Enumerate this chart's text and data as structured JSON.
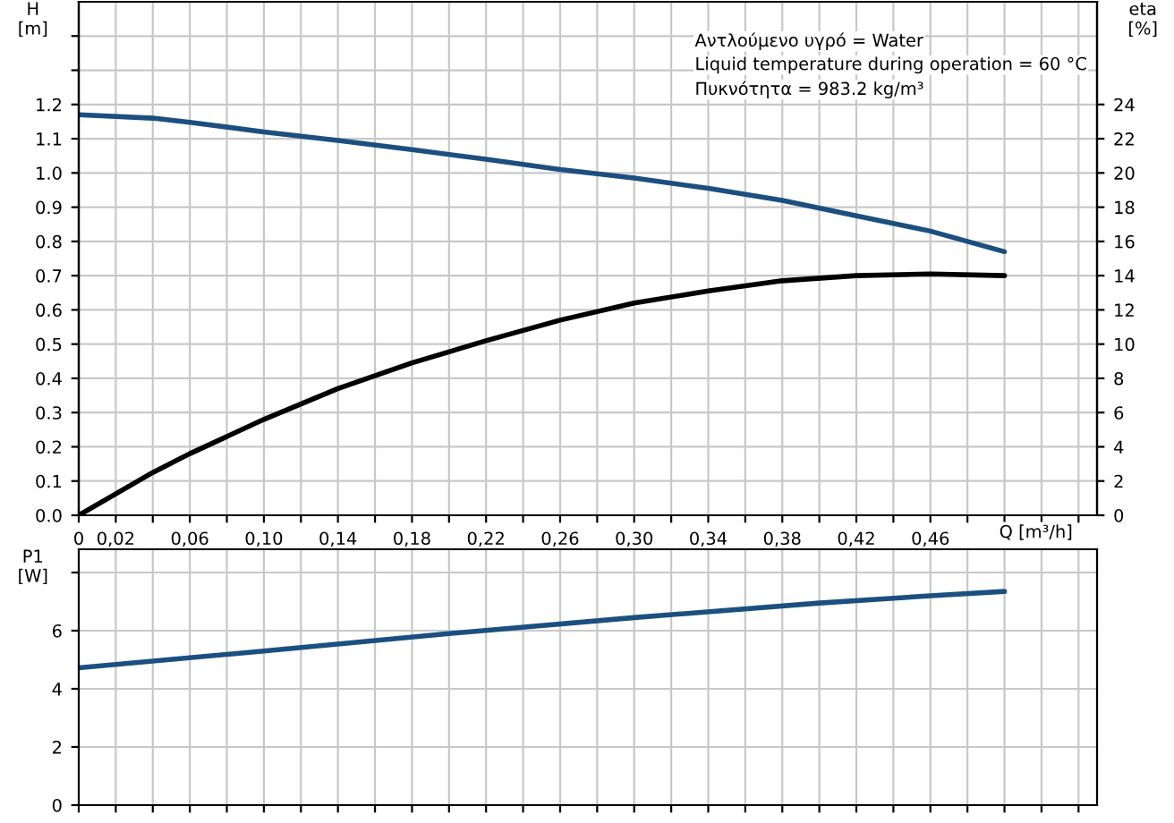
{
  "chart_data": [
    {
      "type": "line",
      "xlabel": "Q [m³/h]",
      "ylabel": "H\n[m]",
      "y2label": "eta\n[%]",
      "annotations": [
        "Αντλούμενο υγρό = Water",
        "Liquid temperature during operation = 60 °C",
        "Πυκνότητα = 983.2 kg/m³"
      ],
      "x": [
        0,
        0.04,
        0.06,
        0.1,
        0.14,
        0.18,
        0.22,
        0.26,
        0.3,
        0.34,
        0.38,
        0.42,
        0.46,
        0.5
      ],
      "series": [
        {
          "color": "#1b4f80",
          "values": [
            1.17,
            1.16,
            1.148,
            1.12,
            1.095,
            1.068,
            1.04,
            1.01,
            0.985,
            0.955,
            0.92,
            0.875,
            0.83,
            0.77
          ]
        },
        {
          "color": "#000000",
          "axis": "y2",
          "values": [
            0,
            2.5,
            3.6,
            5.6,
            7.4,
            8.9,
            10.2,
            11.4,
            12.4,
            13.1,
            13.7,
            14.0,
            14.1,
            14.0
          ]
        }
      ],
      "xlim": [
        0,
        0.55
      ],
      "xticks": [
        0,
        {
          "value": 0.02,
          "label": "0,02"
        },
        {
          "value": 0.04,
          "label": null
        },
        {
          "value": 0.06,
          "label": "0,06"
        },
        {
          "value": 0.08,
          "label": null
        },
        {
          "value": 0.1,
          "label": "0,10"
        },
        {
          "value": 0.12,
          "label": null
        },
        {
          "value": 0.14,
          "label": "0,14"
        },
        {
          "value": 0.16,
          "label": null
        },
        {
          "value": 0.18,
          "label": "0,18"
        },
        {
          "value": 0.2,
          "label": null
        },
        {
          "value": 0.22,
          "label": "0,22"
        },
        {
          "value": 0.24,
          "label": null
        },
        {
          "value": 0.26,
          "label": "0,26"
        },
        {
          "value": 0.28,
          "label": null
        },
        {
          "value": 0.3,
          "label": "0,30"
        },
        {
          "value": 0.32,
          "label": null
        },
        {
          "value": 0.34,
          "label": "0,34"
        },
        {
          "value": 0.36,
          "label": null
        },
        {
          "value": 0.38,
          "label": "0,38"
        },
        {
          "value": 0.4,
          "label": null
        },
        {
          "value": 0.42,
          "label": "0,42"
        },
        {
          "value": 0.44,
          "label": null
        },
        {
          "value": 0.46,
          "label": "0,46"
        },
        {
          "value": 0.48,
          "label": null
        },
        {
          "value": 0.5,
          "label": null
        },
        {
          "value": 0.52,
          "label": null
        },
        {
          "value": 0.54,
          "label": null
        }
      ],
      "ylim": [
        0,
        1.5
      ],
      "yticks": [
        {
          "value": 0,
          "label": "0.0"
        },
        {
          "value": 0.1,
          "label": "0.1"
        },
        {
          "value": 0.2,
          "label": "0.2"
        },
        {
          "value": 0.3,
          "label": "0.3"
        },
        {
          "value": 0.4,
          "label": "0.4"
        },
        {
          "value": 0.5,
          "label": "0.5"
        },
        {
          "value": 0.6,
          "label": "0.6"
        },
        {
          "value": 0.7,
          "label": "0.7"
        },
        {
          "value": 0.8,
          "label": "0.8"
        },
        {
          "value": 0.9,
          "label": "0.9"
        },
        {
          "value": 1.0,
          "label": "1.0"
        },
        {
          "value": 1.1,
          "label": "1.1"
        },
        {
          "value": 1.2,
          "label": "1.2"
        },
        {
          "value": 1.3,
          "label": null
        },
        {
          "value": 1.4,
          "label": null
        }
      ],
      "y2lim": [
        0,
        30
      ],
      "y2ticks": [
        0,
        2,
        4,
        6,
        8,
        10,
        12,
        14,
        16,
        18,
        20,
        22,
        24
      ],
      "grid": true,
      "legend": false
    },
    {
      "type": "line",
      "ylabel": "P1\n[W]",
      "x": [
        0,
        0.1,
        0.2,
        0.3,
        0.4,
        0.46,
        0.5
      ],
      "series": [
        {
          "color": "#1b4f80",
          "values": [
            4.72,
            5.3,
            5.9,
            6.45,
            6.95,
            7.2,
            7.35
          ]
        }
      ],
      "xlim": [
        0,
        0.55
      ],
      "xticks": [
        0,
        0.02,
        0.04,
        0.06,
        0.08,
        0.1,
        0.12,
        0.14,
        0.16,
        0.18,
        0.2,
        0.22,
        0.24,
        0.26,
        0.28,
        0.3,
        0.32,
        0.34,
        0.36,
        0.38,
        0.4,
        0.42,
        0.44,
        0.46,
        0.48,
        0.5,
        0.52,
        0.54
      ],
      "ylim": [
        0,
        8.8
      ],
      "yticks": [
        0,
        2,
        4,
        6,
        {
          "value": 8,
          "label": null
        }
      ],
      "tick_labels": "y",
      "grid": true,
      "legend": false
    }
  ]
}
